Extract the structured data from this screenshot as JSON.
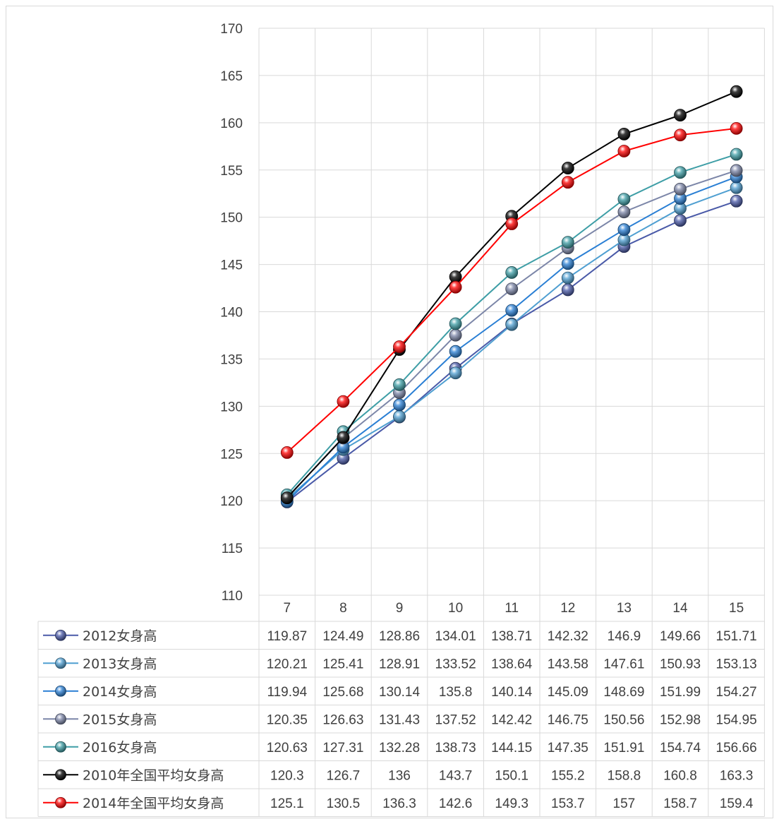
{
  "chart_data": {
    "type": "line",
    "title": "",
    "xlabel": "",
    "ylabel": "",
    "x": [
      "7",
      "8",
      "9",
      "10",
      "11",
      "12",
      "13",
      "14",
      "15"
    ],
    "ylim": [
      110,
      170
    ],
    "yticks": [
      "110",
      "115",
      "120",
      "125",
      "130",
      "135",
      "140",
      "145",
      "150",
      "155",
      "160",
      "165",
      "170"
    ],
    "grid": true,
    "legend": "data-table-below",
    "series": [
      {
        "name": "2012女身高",
        "color": "#4a5aa8",
        "values": [
          119.87,
          124.49,
          128.86,
          134.01,
          138.71,
          142.32,
          146.9,
          149.66,
          151.71
        ],
        "labels": [
          "119.87",
          "124.49",
          "128.86",
          "134.01",
          "138.71",
          "142.32",
          "146.9",
          "149.66",
          "151.71"
        ]
      },
      {
        "name": "2013女身高",
        "color": "#4f9fd1",
        "values": [
          120.21,
          125.41,
          128.91,
          133.52,
          138.64,
          143.58,
          147.61,
          150.93,
          153.13
        ],
        "labels": [
          "120.21",
          "125.41",
          "128.91",
          "133.52",
          "138.64",
          "143.58",
          "147.61",
          "150.93",
          "153.13"
        ]
      },
      {
        "name": "2014女身高",
        "color": "#2a7fd4",
        "values": [
          119.94,
          125.68,
          130.14,
          135.8,
          140.14,
          145.09,
          148.69,
          151.99,
          154.27
        ],
        "labels": [
          "119.94",
          "125.68",
          "130.14",
          "135.8",
          "140.14",
          "145.09",
          "148.69",
          "151.99",
          "154.27"
        ]
      },
      {
        "name": "2015女身高",
        "color": "#7c86a8",
        "values": [
          120.35,
          126.63,
          131.43,
          137.52,
          142.42,
          146.75,
          150.56,
          152.98,
          154.95
        ],
        "labels": [
          "120.35",
          "126.63",
          "131.43",
          "137.52",
          "142.42",
          "146.75",
          "150.56",
          "152.98",
          "154.95"
        ]
      },
      {
        "name": "2016女身高",
        "color": "#3e9ea6",
        "values": [
          120.63,
          127.31,
          132.28,
          138.73,
          144.15,
          147.35,
          151.91,
          154.74,
          156.66
        ],
        "labels": [
          "120.63",
          "127.31",
          "132.28",
          "138.73",
          "144.15",
          "147.35",
          "151.91",
          "154.74",
          "156.66"
        ]
      },
      {
        "name": "2010年全国平均女身高",
        "color": "#000000",
        "values": [
          120.3,
          126.7,
          136,
          143.7,
          150.1,
          155.2,
          158.8,
          160.8,
          163.3
        ],
        "labels": [
          "120.3",
          "126.7",
          "136",
          "143.7",
          "150.1",
          "155.2",
          "158.8",
          "160.8",
          "163.3"
        ]
      },
      {
        "name": "2014年全国平均女身高",
        "color": "#ff0000",
        "values": [
          125.1,
          130.5,
          136.3,
          142.6,
          149.3,
          153.7,
          157,
          158.7,
          159.4
        ],
        "labels": [
          "125.1",
          "130.5",
          "136.3",
          "142.6",
          "149.3",
          "153.7",
          "157",
          "158.7",
          "159.4"
        ]
      }
    ]
  }
}
